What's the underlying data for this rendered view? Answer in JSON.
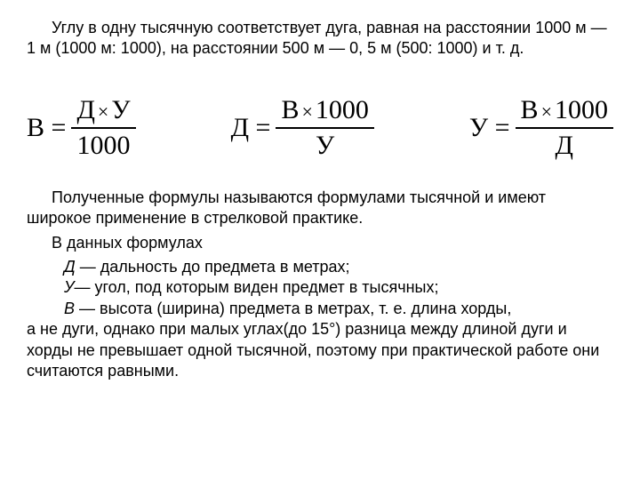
{
  "intro_paragraph": "Углу в одну тысячную соответствует дуга, равная на расстоянии 1000 м — 1 м (1000 м: 1000), на расстоянии 500 м — 0, 5 м (500: 1000) и т. д.",
  "formulas": {
    "f1": {
      "lhs": "В",
      "num_a": "Д",
      "mult": "×",
      "num_b": "У",
      "den": "1000"
    },
    "f2": {
      "lhs": "Д",
      "num_a": "В",
      "mult": "×",
      "num_b": "1000",
      "den": "У"
    },
    "f3": {
      "lhs": "У",
      "num_a": "В",
      "mult": "×",
      "num_b": "1000",
      "den": "Д"
    }
  },
  "eq_sign": "=",
  "outro_1": "Полученные формулы называются формулами тысячной и имеют широкое применение в стрелковой практике.",
  "outro_2": "В данных формулах",
  "defs": {
    "d": {
      "sym": "Д",
      "text": " — дальность до предмета в метрах;"
    },
    "u": {
      "sym": "У",
      "text": "— угол, под которым виден предмет в тысячных;"
    },
    "v": {
      "sym": "В",
      "text": " — высота (ширина) предмета в метрах, т. е. длина хорды,"
    }
  },
  "final": "а не дуги, однако при малых углах(до 15°) разница между длиной дуги и хорды не превышает одной тысячной, поэтому при практической работе они считаются равными.",
  "colors": {
    "text": "#000000",
    "background": "#ffffff"
  },
  "typography": {
    "body_fontsize": 18,
    "formula_fontsize": 30,
    "body_family": "Arial",
    "formula_family": "Times New Roman"
  }
}
